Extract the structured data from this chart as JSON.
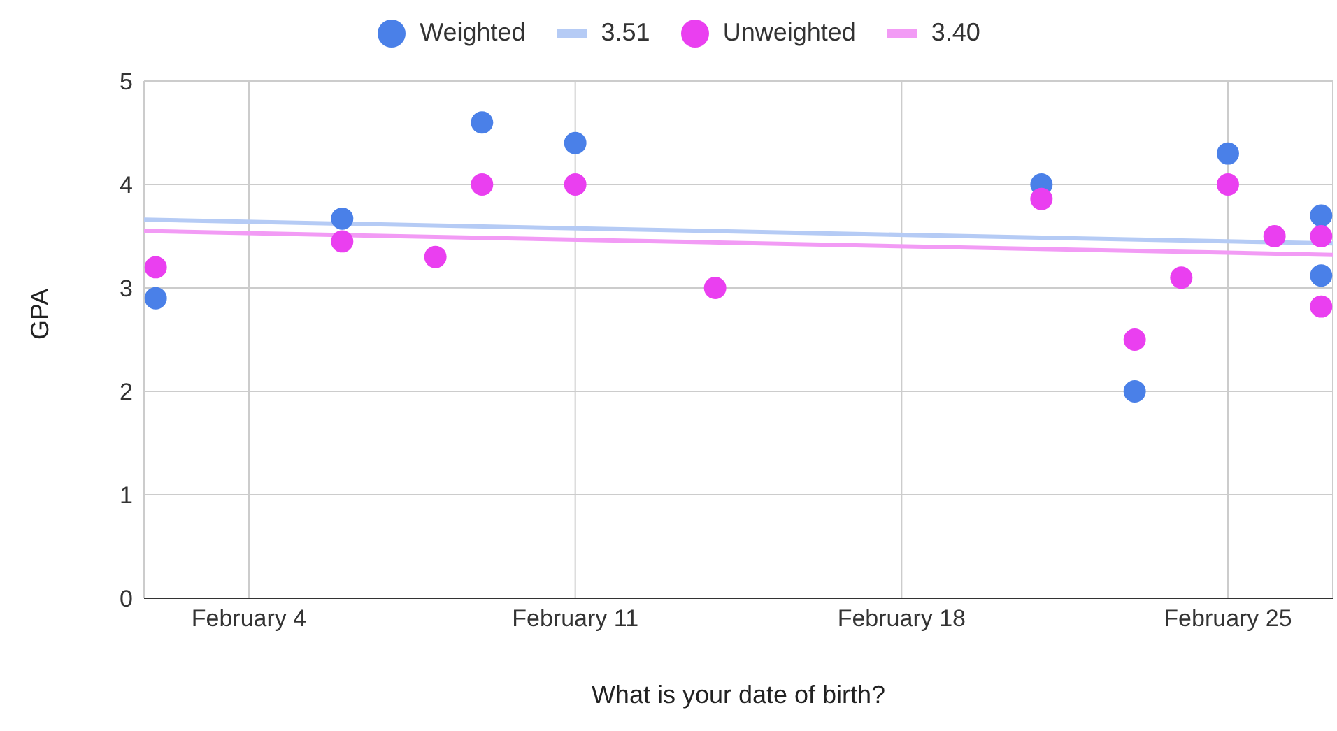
{
  "chart_data": {
    "type": "scatter",
    "xlabel": "What is your date of birth?",
    "ylabel": "GPA",
    "xlim": [
      "--02-01T18:00",
      "--02-27T06:00"
    ],
    "xticks": [
      {
        "value": "--02-04",
        "label": "February 4"
      },
      {
        "value": "--02-11",
        "label": "February 11"
      },
      {
        "value": "--02-18",
        "label": "February 18"
      },
      {
        "value": "--02-25",
        "label": "February 25"
      }
    ],
    "ylim": [
      0,
      5
    ],
    "yticks": [
      0,
      1,
      2,
      3,
      4,
      5
    ],
    "grid": true,
    "legend": "top",
    "series": [
      {
        "name": "Weighted",
        "marker": "circle",
        "color": "#4a80e8",
        "x": [
          "--02-02",
          "--02-06",
          "--02-08",
          "--02-09",
          "--02-11",
          "--02-14",
          "--02-21",
          "--02-23",
          "--02-24",
          "--02-25",
          "--02-26",
          "--02-27",
          "--02-27"
        ],
        "values": [
          2.9,
          3.67,
          null,
          4.6,
          4.4,
          null,
          4.0,
          2.0,
          null,
          4.3,
          null,
          3.7,
          3.12
        ]
      },
      {
        "name": "3.51",
        "type": "line",
        "marker": "none",
        "color": "#b5cbf5",
        "x": [
          "--02-01T18:00",
          "--02-27T06:00"
        ],
        "values": [
          3.66,
          3.43
        ]
      },
      {
        "name": "Unweighted",
        "marker": "circle",
        "color": "#ea3ff0",
        "x": [
          "--02-02",
          "--02-06",
          "--02-08",
          "--02-09",
          "--02-11",
          "--02-14",
          "--02-21",
          "--02-23",
          "--02-24",
          "--02-25",
          "--02-26",
          "--02-27",
          "--02-27"
        ],
        "values": [
          3.2,
          3.45,
          3.3,
          4.0,
          4.0,
          3.0,
          3.86,
          2.5,
          3.1,
          4.0,
          3.5,
          3.5,
          2.82
        ]
      },
      {
        "name": "3.40",
        "type": "line",
        "marker": "none",
        "color": "#f29bf5",
        "x": [
          "--02-01T18:00",
          "--02-27T06:00"
        ],
        "values": [
          3.55,
          3.32
        ]
      }
    ]
  }
}
